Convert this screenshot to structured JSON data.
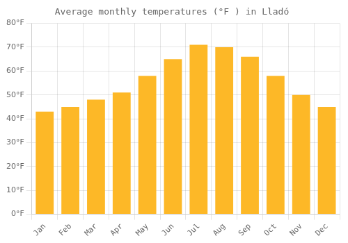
{
  "chart_data": {
    "type": "bar",
    "title": "Average monthly temperatures (°F ) in Lladó",
    "categories": [
      "Jan",
      "Feb",
      "Mar",
      "Apr",
      "May",
      "Jun",
      "Jul",
      "Aug",
      "Sep",
      "Oct",
      "Nov",
      "Dec"
    ],
    "values": [
      43,
      45,
      48,
      51,
      58,
      65,
      71,
      70,
      66,
      58,
      50,
      45
    ],
    "color": "#FDB827",
    "ylim": [
      0,
      80
    ],
    "yticks": [
      {
        "value": 0,
        "label": "0°F"
      },
      {
        "value": 10,
        "label": "10°F"
      },
      {
        "value": 20,
        "label": "20°F"
      },
      {
        "value": 30,
        "label": "30°F"
      },
      {
        "value": 40,
        "label": "40°F"
      },
      {
        "value": 50,
        "label": "50°F"
      },
      {
        "value": 60,
        "label": "60°F"
      },
      {
        "value": 70,
        "label": "70°F"
      },
      {
        "value": 80,
        "label": "80°F"
      }
    ],
    "grid": true
  }
}
